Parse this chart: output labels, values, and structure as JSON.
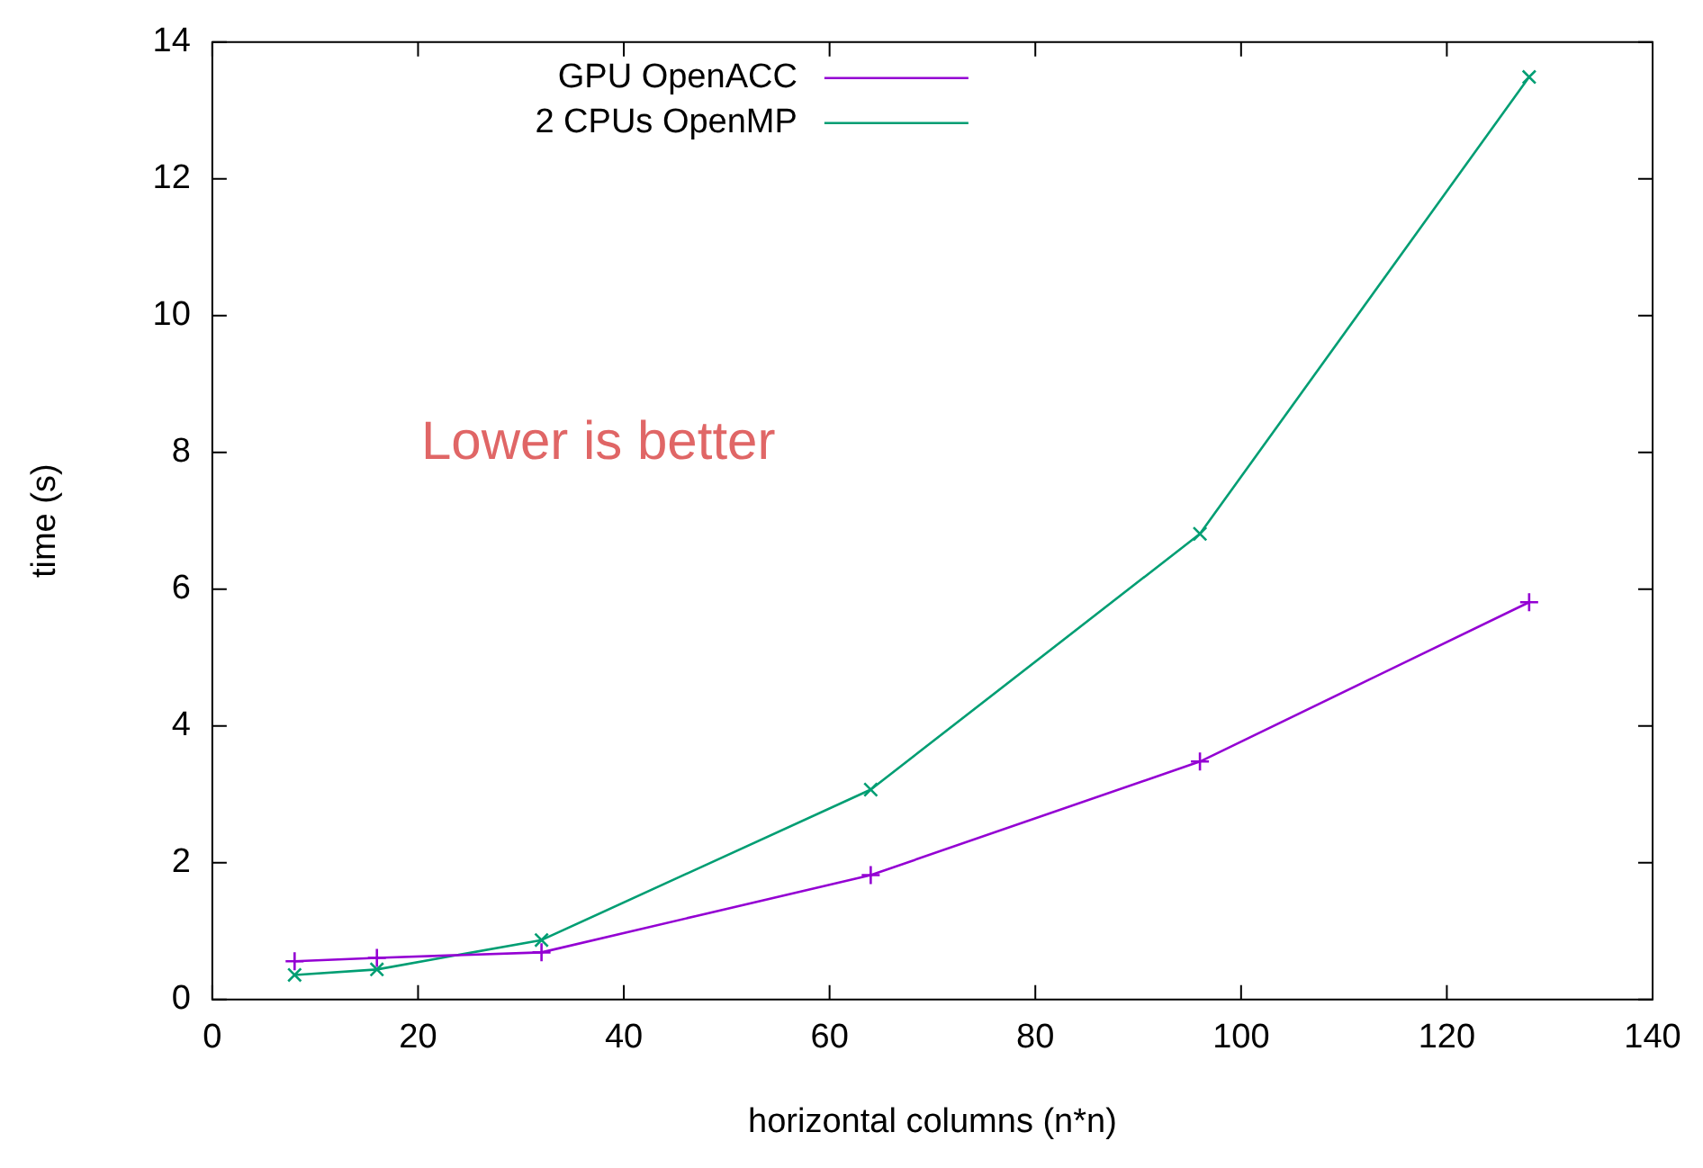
{
  "chart_data": {
    "type": "line",
    "xlabel": "horizontal columns (n*n)",
    "ylabel": "time (s)",
    "annotations": [
      "Lower is better"
    ],
    "xlim": [
      0,
      140
    ],
    "xticks": [
      0,
      20,
      40,
      60,
      80,
      100,
      120,
      140
    ],
    "ylim": [
      0,
      14
    ],
    "yticks": [
      0,
      2,
      4,
      6,
      8,
      10,
      12,
      14
    ],
    "grid": false,
    "legend": "top left",
    "marker": "cross",
    "line_style": "solid",
    "series": [
      {
        "name": "GPU OpenACC",
        "color": "#9400d3",
        "x": [
          8,
          16,
          32,
          64,
          96,
          128
        ],
        "values": [
          0.56,
          0.61,
          0.69,
          1.82,
          3.48,
          5.81
        ]
      },
      {
        "name": "2 CPUs OpenMP",
        "color": "#009e73",
        "x": [
          8,
          16,
          32,
          64,
          96,
          128
        ],
        "values": [
          0.36,
          0.44,
          0.87,
          3.07,
          6.81,
          13.49
        ]
      }
    ]
  }
}
